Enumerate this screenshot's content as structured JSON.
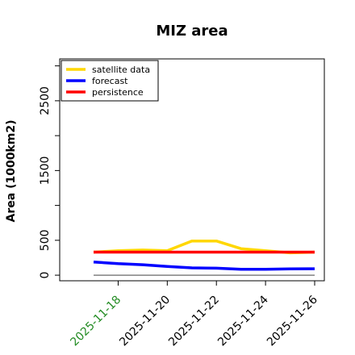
{
  "chart_data": {
    "type": "line",
    "title": "MIZ area",
    "xlabel": "",
    "ylabel": "Area (1000km2)",
    "x": [
      "2025-11-17",
      "2025-11-18",
      "2025-11-19",
      "2025-11-20",
      "2025-11-21",
      "2025-11-22",
      "2025-11-23",
      "2025-11-24",
      "2025-11-25",
      "2025-11-26"
    ],
    "x_tick_labels": [
      "2025-11-18",
      "2025-11-20",
      "2025-11-22",
      "2025-11-24",
      "2025-11-26"
    ],
    "x_tick_colors": [
      "#228B22",
      "#000000",
      "#000000",
      "#000000",
      "#000000"
    ],
    "y_ticks": [
      0,
      500,
      1500,
      2500
    ],
    "ylim": [
      -80,
      3100
    ],
    "grid": false,
    "legend_position": "top-left",
    "baseline": {
      "value": 0,
      "color": "#808080"
    },
    "series": [
      {
        "name": "satellite data",
        "color": "#FFD700",
        "values": [
          330,
          350,
          360,
          350,
          490,
          490,
          380,
          350,
          320,
          330
        ]
      },
      {
        "name": "forecast",
        "color": "#0000FF",
        "values": [
          190,
          165,
          150,
          125,
          105,
          100,
          85,
          85,
          90,
          92
        ]
      },
      {
        "name": "persistence",
        "color": "#FF0000",
        "values": [
          330,
          330,
          330,
          330,
          330,
          330,
          330,
          330,
          330,
          330
        ]
      }
    ]
  }
}
